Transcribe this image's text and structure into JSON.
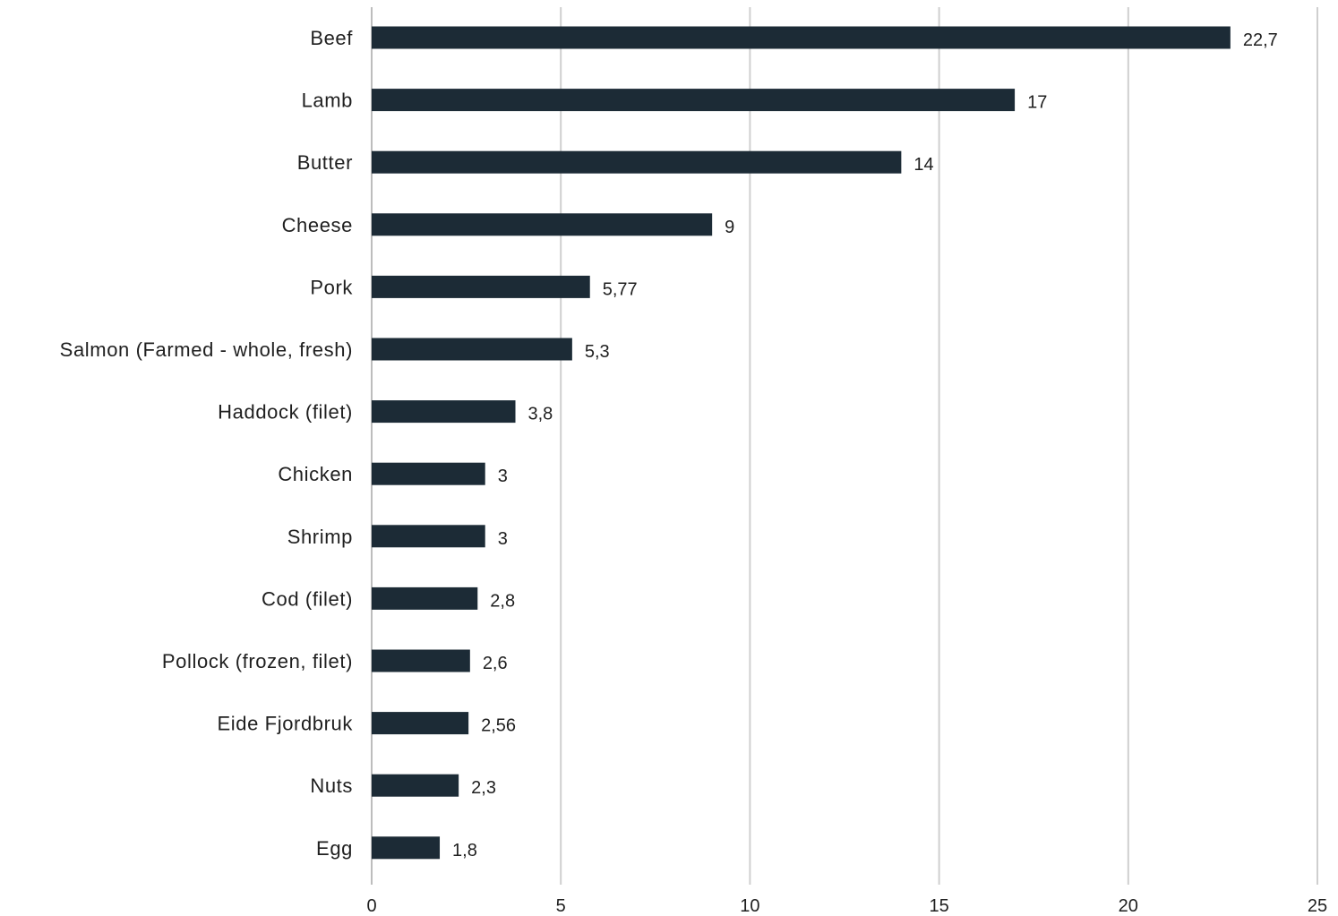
{
  "chart_data": {
    "type": "bar",
    "orientation": "horizontal",
    "categories": [
      "Beef",
      "Lamb",
      "Butter",
      "Cheese",
      "Pork",
      "Salmon (Farmed - whole, fresh)",
      "Haddock (filet)",
      "Chicken",
      "Shrimp",
      "Cod (filet)",
      "Pollock (frozen, filet)",
      "Eide Fjordbruk",
      "Nuts",
      "Egg"
    ],
    "values": [
      22.7,
      17,
      14,
      9,
      5.77,
      5.3,
      3.8,
      3,
      3,
      2.8,
      2.6,
      2.56,
      2.3,
      1.8
    ],
    "value_labels": [
      "22,7",
      "17",
      "14",
      "9",
      "5,77",
      "5,3",
      "3,8",
      "3",
      "3",
      "2,8",
      "2,6",
      "2,56",
      "2,3",
      "1,8"
    ],
    "xlim": [
      0,
      25
    ],
    "x_ticks": [
      0,
      5,
      10,
      15,
      20,
      25
    ],
    "x_tick_labels": [
      "0",
      "5",
      "10",
      "15",
      "20",
      "25"
    ],
    "grid": true,
    "legend": "none",
    "bar_color": "#1c2b36",
    "grid_color": "#cfcfcf"
  }
}
